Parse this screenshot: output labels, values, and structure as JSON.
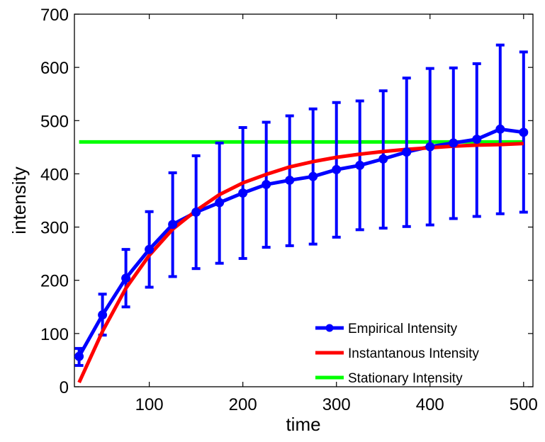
{
  "chart_data": {
    "type": "line",
    "title": "",
    "xlabel": "time",
    "ylabel": "intensity",
    "xlim": [
      20,
      510
    ],
    "ylim": [
      0,
      700
    ],
    "xticks": [
      100,
      200,
      300,
      400,
      500
    ],
    "yticks": [
      0,
      100,
      200,
      300,
      400,
      500,
      600,
      700
    ],
    "grid": false,
    "legend_position": "bottom-right",
    "series": [
      {
        "name": "Empirical Intensity",
        "color": "#0000ff",
        "marker": "circle",
        "x": [
          25,
          50,
          75,
          100,
          125,
          150,
          175,
          200,
          225,
          250,
          275,
          300,
          325,
          350,
          375,
          400,
          425,
          450,
          475,
          500
        ],
        "y": [
          57,
          135,
          204,
          258,
          305,
          328,
          346,
          364,
          380,
          388,
          395,
          408,
          416,
          428,
          441,
          451,
          458,
          465,
          484,
          478
        ],
        "error_lower": [
          40,
          97,
          150,
          187,
          207,
          222,
          232,
          241,
          262,
          265,
          268,
          281,
          295,
          298,
          301,
          304,
          316,
          320,
          325,
          328
        ],
        "error_upper": [
          72,
          174,
          258,
          329,
          402,
          434,
          458,
          487,
          497,
          509,
          522,
          534,
          537,
          556,
          580,
          598,
          599,
          607,
          642,
          629
        ]
      },
      {
        "name": "Instantanous Intensity",
        "color": "#ff0000",
        "x": [
          25,
          50,
          75,
          100,
          125,
          150,
          175,
          200,
          225,
          250,
          275,
          300,
          325,
          350,
          375,
          400,
          425,
          450,
          475,
          500
        ],
        "y": [
          8,
          104,
          185,
          247,
          296,
          331,
          361,
          383,
          399,
          413,
          423,
          431,
          437,
          442,
          446,
          449,
          452,
          454,
          455,
          457
        ]
      },
      {
        "name": "Stationary Intensity",
        "color": "#00ff00",
        "x": [
          25,
          500
        ],
        "y": [
          460,
          460
        ]
      }
    ]
  }
}
